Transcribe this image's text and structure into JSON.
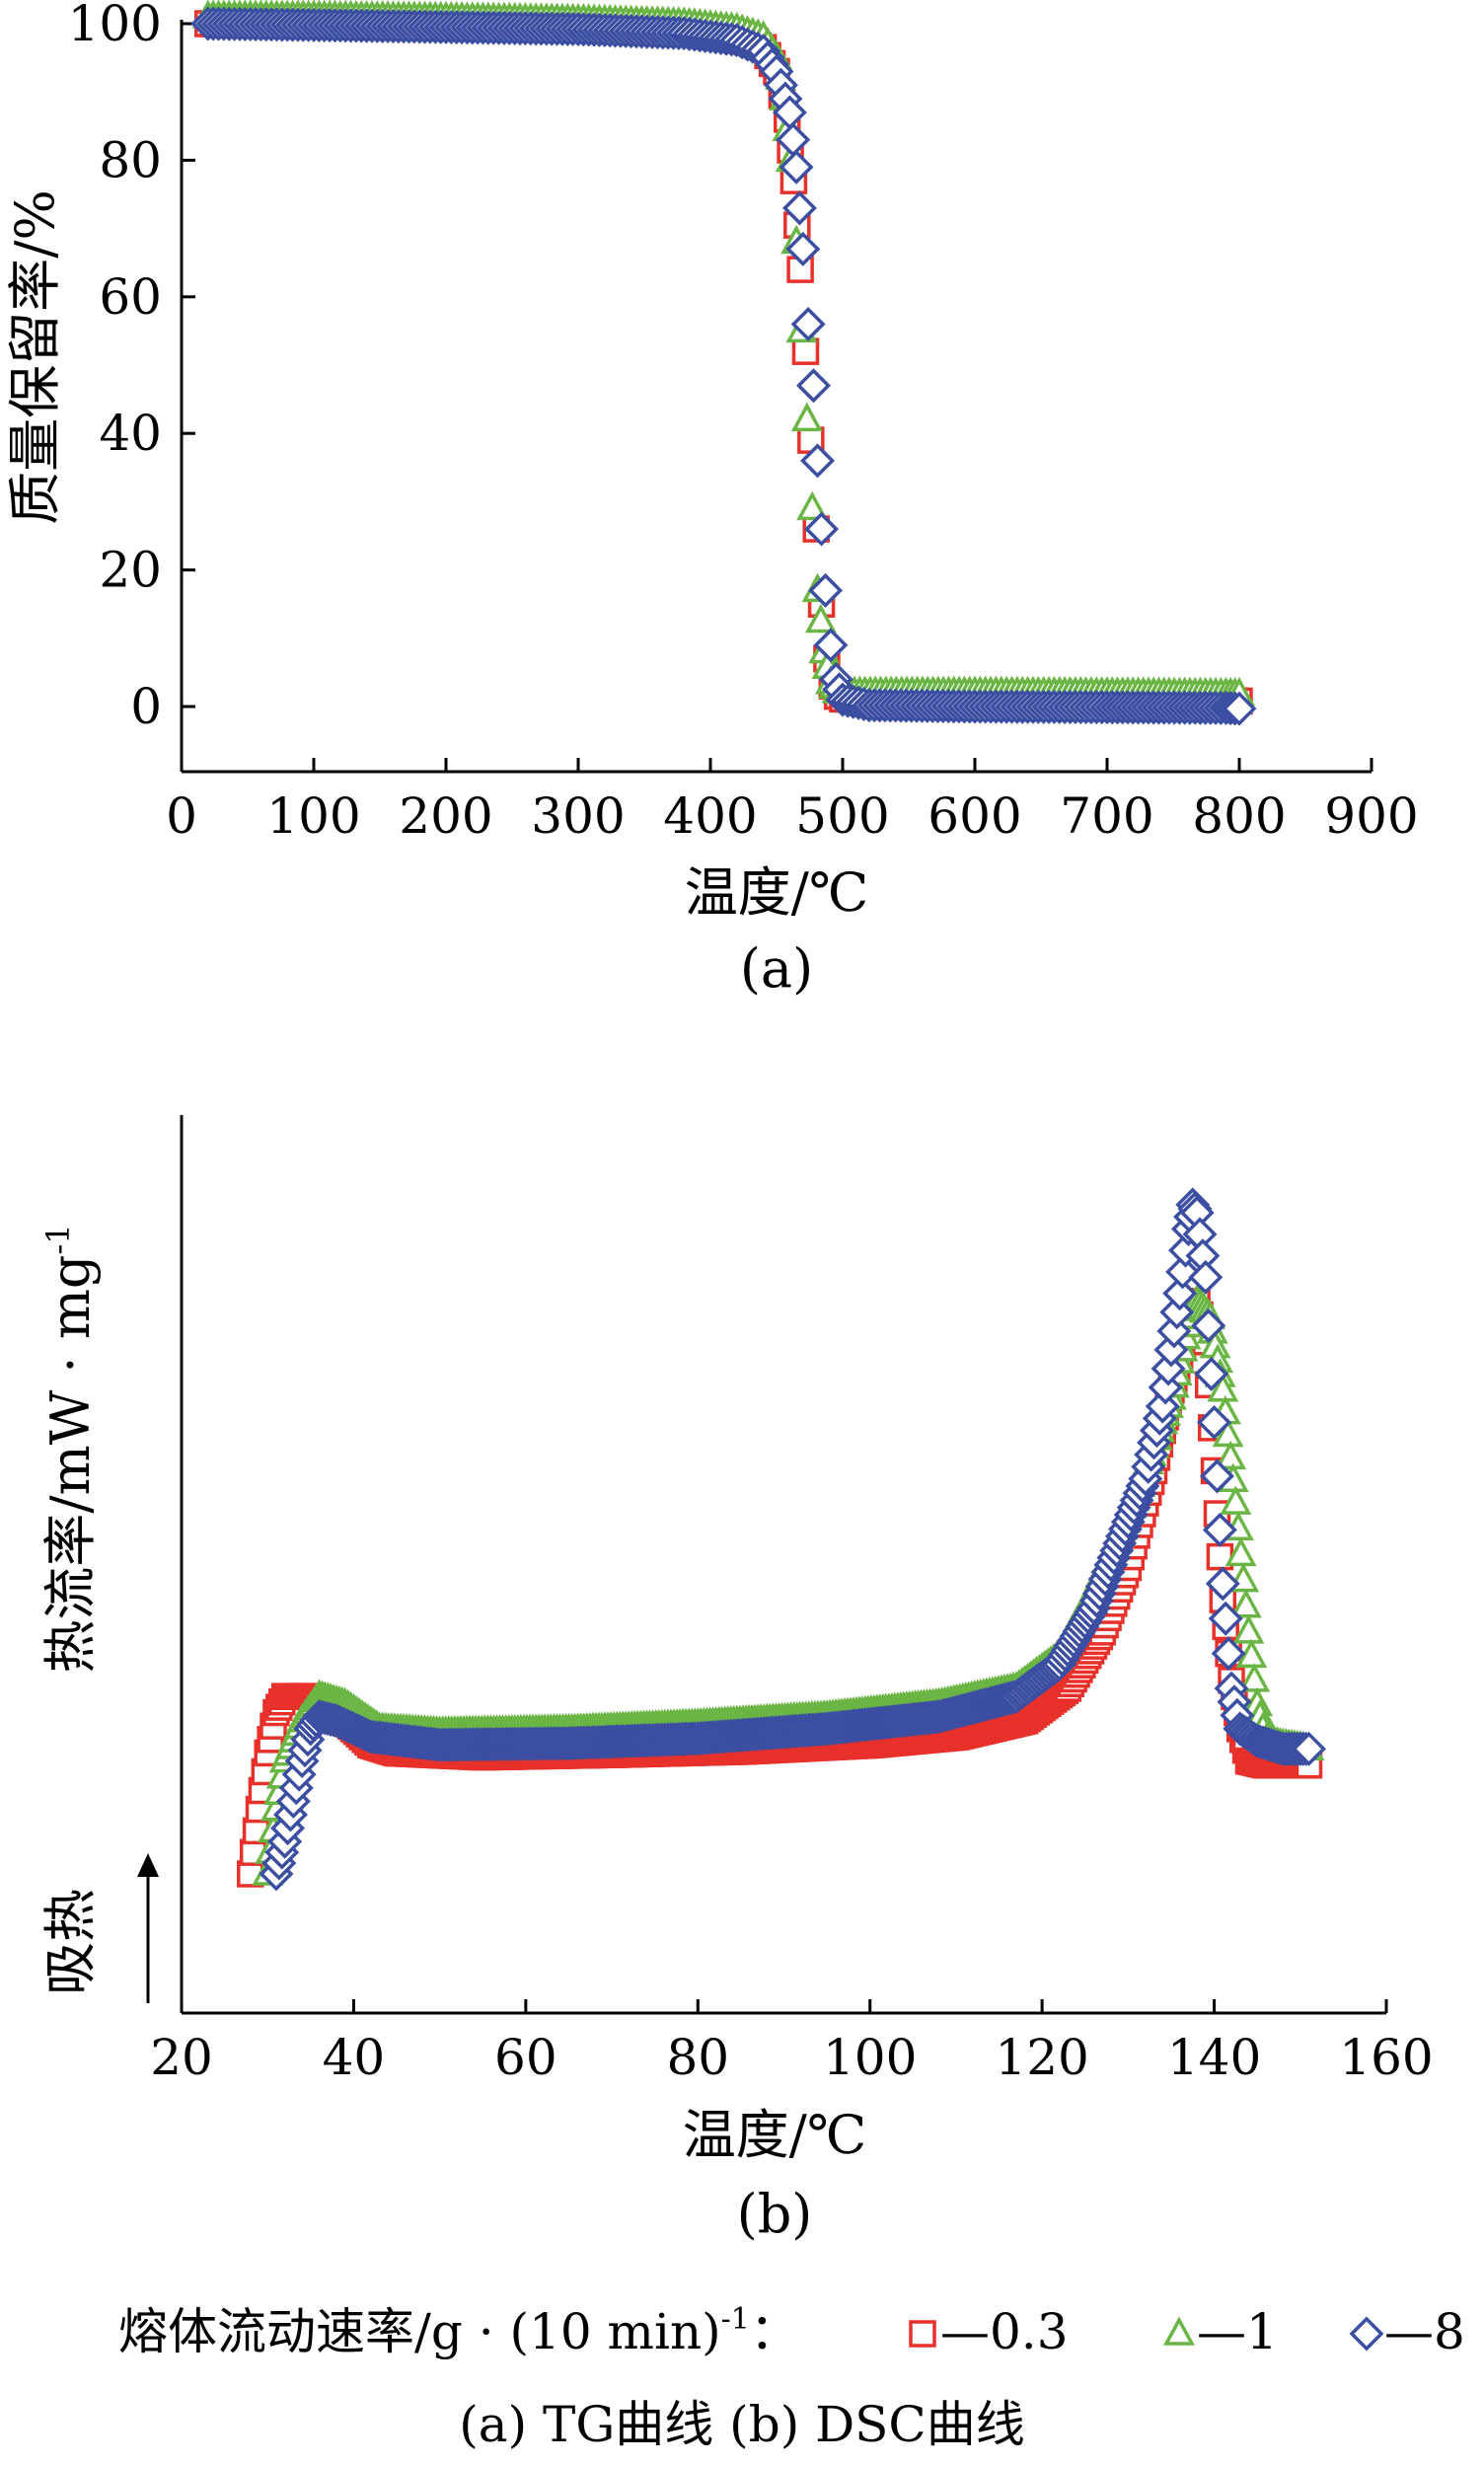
{
  "chart_data": [
    {
      "type": "scatter",
      "panel_label": "(a)",
      "xlabel": "温度/℃",
      "ylabel": "质量保留率/%",
      "xlim": [
        0,
        900
      ],
      "ylim": [
        -10,
        100
      ],
      "xticks": [
        0,
        100,
        200,
        300,
        400,
        500,
        600,
        700,
        800,
        900
      ],
      "yticks": [
        0,
        20,
        40,
        60,
        80,
        100
      ],
      "grid": false,
      "series": [
        {
          "name": "0.3",
          "color": "#e8312a",
          "marker": "square",
          "points": [
            [
              20,
              100
            ],
            [
              100,
              99.8
            ],
            [
              200,
              99.6
            ],
            [
              300,
              99.3
            ],
            [
              380,
              98.8
            ],
            [
              420,
              97.8
            ],
            [
              440,
              96.5
            ],
            [
              450,
              93
            ],
            [
              458,
              86
            ],
            [
              463,
              77
            ],
            [
              468,
              64
            ],
            [
              472,
              52
            ],
            [
              476,
              39
            ],
            [
              480,
              26
            ],
            [
              484,
              15
            ],
            [
              488,
              7
            ],
            [
              492,
              3
            ],
            [
              496,
              1.5
            ],
            [
              500,
              1.1
            ],
            [
              520,
              1
            ],
            [
              600,
              1
            ],
            [
              700,
              0.9
            ],
            [
              790,
              0.9
            ],
            [
              800,
              0.8
            ]
          ]
        },
        {
          "name": "1",
          "color": "#6ab544",
          "marker": "triangle",
          "points": [
            [
              20,
              101
            ],
            [
              100,
              101
            ],
            [
              200,
              100.8
            ],
            [
              300,
              100.5
            ],
            [
              380,
              100
            ],
            [
              420,
              99.2
            ],
            [
              440,
              98
            ],
            [
              450,
              95
            ],
            [
              456,
              89
            ],
            [
              461,
              80
            ],
            [
              465,
              68
            ],
            [
              469,
              55
            ],
            [
              473,
              42
            ],
            [
              477,
              29
            ],
            [
              481,
              17
            ],
            [
              486,
              8
            ],
            [
              491,
              3.5
            ],
            [
              496,
              2.2
            ],
            [
              505,
              2
            ],
            [
              600,
              2
            ],
            [
              700,
              1.9
            ],
            [
              790,
              1.8
            ],
            [
              800,
              1.8
            ]
          ]
        },
        {
          "name": "8",
          "color": "#3b4ea1",
          "marker": "diamond",
          "points": [
            [
              20,
              100
            ],
            [
              100,
              99.8
            ],
            [
              200,
              99.5
            ],
            [
              300,
              99.2
            ],
            [
              380,
              98.6
            ],
            [
              420,
              97.6
            ],
            [
              440,
              96
            ],
            [
              450,
              93
            ],
            [
              460,
              87
            ],
            [
              465,
              79
            ],
            [
              470,
              67
            ],
            [
              474,
              56
            ],
            [
              478,
              47
            ],
            [
              481,
              36
            ],
            [
              484,
              26
            ],
            [
              487,
              17
            ],
            [
              491,
              9
            ],
            [
              495,
              4
            ],
            [
              500,
              1
            ],
            [
              520,
              0.2
            ],
            [
              600,
              0
            ],
            [
              700,
              -0.1
            ],
            [
              790,
              -0.2
            ],
            [
              800,
              -0.3
            ]
          ]
        }
      ]
    },
    {
      "type": "scatter",
      "panel_label": "(b)",
      "xlabel": "温度/℃",
      "ylabel": "热流率/mW · mg",
      "ylabel_sup": "-1",
      "endotherm_label": "吸热",
      "xlim": [
        20,
        160
      ],
      "ylim": [
        0,
        100
      ],
      "xticks": [
        20,
        40,
        60,
        80,
        100,
        120,
        140,
        160
      ],
      "grid": false,
      "series": [
        {
          "name": "0.3",
          "color": "#e8312a",
          "marker": "square",
          "points": [
            [
              28,
              12
            ],
            [
              29,
              20
            ],
            [
              30,
              27
            ],
            [
              31,
              32
            ],
            [
              32,
              34
            ],
            [
              35,
              34
            ],
            [
              38,
              32
            ],
            [
              42,
              28
            ],
            [
              45,
              27
            ],
            [
              55,
              26.5
            ],
            [
              70,
              26.8
            ],
            [
              85,
              27.2
            ],
            [
              100,
              28
            ],
            [
              110,
              29
            ],
            [
              118,
              31
            ],
            [
              123,
              35
            ],
            [
              127,
              42
            ],
            [
              130,
              50
            ],
            [
              133,
              62
            ],
            [
              135,
              72
            ],
            [
              137,
              80
            ],
            [
              138,
              83
            ],
            [
              139,
              78
            ],
            [
              140,
              62
            ],
            [
              141,
              46
            ],
            [
              142,
              36
            ],
            [
              143,
              30
            ],
            [
              144,
              26
            ],
            [
              146,
              25.5
            ],
            [
              151,
              25.5
            ]
          ]
        },
        {
          "name": "1",
          "color": "#6ab544",
          "marker": "triangle",
          "points": [
            [
              30,
              12
            ],
            [
              31,
              20
            ],
            [
              32,
              26
            ],
            [
              34,
              31
            ],
            [
              36,
              34
            ],
            [
              39,
              33
            ],
            [
              43,
              30
            ],
            [
              50,
              29.5
            ],
            [
              65,
              29.8
            ],
            [
              80,
              30.5
            ],
            [
              95,
              31.5
            ],
            [
              108,
              33
            ],
            [
              117,
              35
            ],
            [
              122,
              39
            ],
            [
              126,
              47
            ],
            [
              129,
              54
            ],
            [
              132,
              62
            ],
            [
              135,
              71
            ],
            [
              137,
              80
            ],
            [
              138,
              83
            ],
            [
              139.5,
              81
            ],
            [
              141,
              72
            ],
            [
              142.5,
              58
            ],
            [
              144,
              42
            ],
            [
              145,
              33
            ],
            [
              146,
              28.5
            ],
            [
              148,
              28
            ],
            [
              151,
              27.5
            ]
          ]
        },
        {
          "name": "8",
          "color": "#3b4ea1",
          "marker": "diamond",
          "points": [
            [
              31,
              12
            ],
            [
              32,
              16
            ],
            [
              33,
              21
            ],
            [
              34,
              26
            ],
            [
              35,
              30
            ],
            [
              36,
              31.5
            ],
            [
              38,
              31
            ],
            [
              42,
              29
            ],
            [
              50,
              28
            ],
            [
              65,
              28.2
            ],
            [
              80,
              28.8
            ],
            [
              95,
              30
            ],
            [
              108,
              31.5
            ],
            [
              117,
              34
            ],
            [
              122,
              38
            ],
            [
              126,
              45
            ],
            [
              129,
              53
            ],
            [
              132,
              61
            ],
            [
              134,
              70
            ],
            [
              136,
              84
            ],
            [
              137,
              92
            ],
            [
              137.5,
              95
            ],
            [
              138,
              94
            ],
            [
              139,
              86
            ],
            [
              140,
              68
            ],
            [
              141,
              48
            ],
            [
              142,
              35
            ],
            [
              143,
              30
            ],
            [
              145,
              28.5
            ],
            [
              148,
              27.5
            ],
            [
              151,
              27.5
            ]
          ]
        }
      ]
    }
  ],
  "legend": {
    "title": "熔体流动速率/g · (10 min)",
    "title_sup": "-1",
    "separator": "：",
    "dash": "—"
  },
  "figure_caption": "(a) TG曲线    (b) DSC曲线"
}
